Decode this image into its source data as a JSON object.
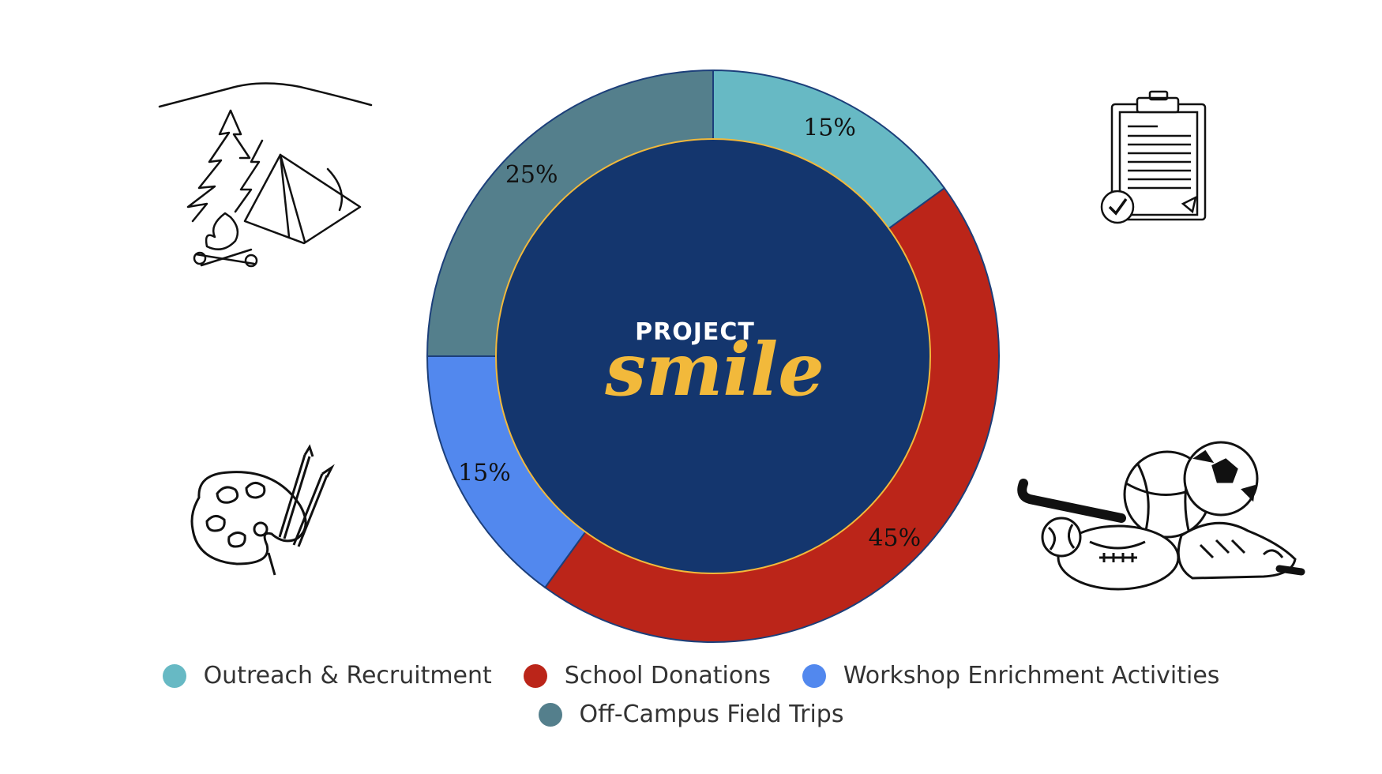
{
  "chart_data": {
    "type": "pie",
    "categories": [
      "Outreach & Recruitment",
      "School Donations",
      "Workshop Enrichment Activities",
      "Off-Campus Field Trips"
    ],
    "values": [
      15,
      45,
      15,
      25
    ],
    "labels": [
      "15%",
      "45%",
      "15%",
      "25%"
    ],
    "colors": [
      "#67b9c4",
      "#bb2519",
      "#5288ee",
      "#547f8c"
    ],
    "hole_color": "#14366e",
    "hole_ring_color": "#f2b93b",
    "title": "",
    "legend_position": "bottom"
  },
  "logo": {
    "top_text": "PROJECT",
    "bottom_text": "smile"
  },
  "decorations": {
    "camping": "camping-illustration",
    "clipboard": "clipboard-checklist-icon",
    "art": "art-palette-icon",
    "sports": "sports-equipment-illustration"
  }
}
